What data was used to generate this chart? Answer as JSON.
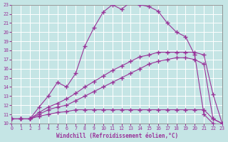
{
  "xlabel": "Windchill (Refroidissement éolien,°C)",
  "background_color": "#c5e5e5",
  "grid_color": "#b0d0d0",
  "line_color": "#993399",
  "xlim": [
    0,
    23
  ],
  "ylim": [
    10,
    23
  ],
  "xticks": [
    0,
    1,
    2,
    3,
    4,
    5,
    6,
    7,
    8,
    9,
    10,
    11,
    12,
    13,
    14,
    15,
    16,
    17,
    18,
    19,
    20,
    21,
    22,
    23
  ],
  "yticks": [
    10,
    11,
    12,
    13,
    14,
    15,
    16,
    17,
    18,
    19,
    20,
    21,
    22,
    23
  ],
  "curve1_x": [
    0,
    1,
    2,
    3,
    4,
    5,
    6,
    7,
    8,
    9,
    10,
    11,
    12,
    13,
    14,
    15,
    16,
    17,
    18,
    19,
    20,
    21,
    22
  ],
  "curve1_y": [
    10.5,
    10.5,
    10.5,
    11.8,
    13.0,
    14.5,
    14.0,
    15.5,
    18.5,
    20.5,
    22.2,
    23.0,
    22.5,
    23.3,
    23.0,
    22.8,
    22.3,
    21.0,
    20.0,
    19.5,
    17.5,
    11.0,
    10.0
  ],
  "curve2_x": [
    0,
    1,
    2,
    3,
    4,
    5,
    6,
    7,
    8,
    9,
    10,
    11,
    12,
    13,
    14,
    15,
    16,
    17,
    18,
    19,
    20,
    21,
    22,
    23
  ],
  "curve2_y": [
    10.5,
    10.5,
    10.5,
    11.2,
    11.8,
    12.2,
    12.7,
    13.3,
    14.0,
    14.6,
    15.2,
    15.8,
    16.3,
    16.8,
    17.3,
    17.5,
    17.8,
    17.8,
    17.8,
    17.8,
    17.8,
    17.5,
    13.2,
    10.0
  ],
  "curve3_x": [
    0,
    1,
    2,
    3,
    4,
    5,
    6,
    7,
    8,
    9,
    10,
    11,
    12,
    13,
    14,
    15,
    16,
    17,
    18,
    19,
    20,
    21,
    22,
    23
  ],
  "curve3_y": [
    10.5,
    10.5,
    10.5,
    11.0,
    11.5,
    11.8,
    12.0,
    12.5,
    13.0,
    13.5,
    14.0,
    14.5,
    15.0,
    15.5,
    16.0,
    16.5,
    16.8,
    17.0,
    17.2,
    17.2,
    17.0,
    16.5,
    10.5,
    10.0
  ],
  "curve4_x": [
    0,
    1,
    2,
    3,
    4,
    5,
    6,
    7,
    8,
    9,
    10,
    11,
    12,
    13,
    14,
    15,
    16,
    17,
    18,
    19,
    20,
    21,
    22,
    23
  ],
  "curve4_y": [
    10.5,
    10.5,
    10.5,
    10.8,
    11.0,
    11.2,
    11.3,
    11.5,
    11.5,
    11.5,
    11.5,
    11.5,
    11.5,
    11.5,
    11.5,
    11.5,
    11.5,
    11.5,
    11.5,
    11.5,
    11.5,
    11.5,
    10.5,
    10.0
  ]
}
